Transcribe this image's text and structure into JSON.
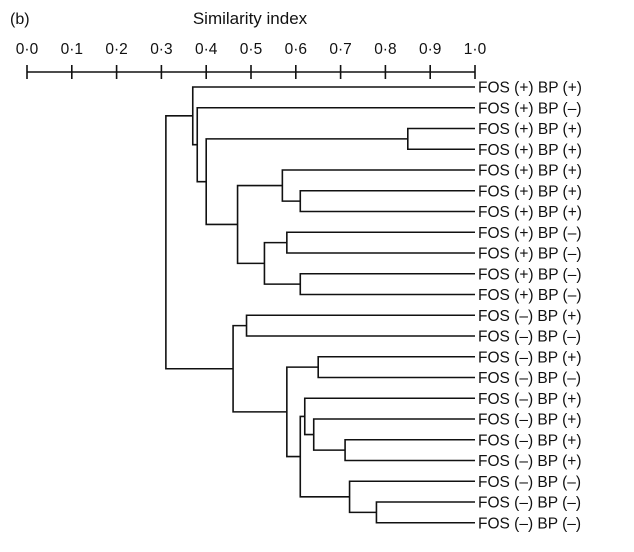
{
  "panel_label": "(b)",
  "axis_title": "Similarity index",
  "chart_data": {
    "type": "dendrogram",
    "axis": {
      "range": [
        0.0,
        1.0
      ],
      "ticks": [
        0.0,
        0.1,
        0.2,
        0.3,
        0.4,
        0.5,
        0.6,
        0.7,
        0.8,
        0.9,
        1.0
      ],
      "tick_labels": [
        "0·0",
        "0·1",
        "0·2",
        "0·3",
        "0·4",
        "0·5",
        "0·6",
        "0·7",
        "0·8",
        "0·9",
        "1·0"
      ],
      "position": "top"
    },
    "leaves": [
      "FOS (+) BP (+)",
      "FOS (+) BP (–)",
      "FOS (+) BP (+)",
      "FOS (+) BP (+)",
      "FOS (+) BP (+)",
      "FOS (+) BP (+)",
      "FOS (+) BP (+)",
      "FOS (+) BP (–)",
      "FOS (+) BP (–)",
      "FOS (+) BP (–)",
      "FOS (+) BP (–)",
      "FOS (–) BP (+)",
      "FOS (–) BP (–)",
      "FOS (–) BP (+)",
      "FOS (–) BP (–)",
      "FOS (–) BP (+)",
      "FOS (–) BP (+)",
      "FOS (–) BP (+)",
      "FOS (–) BP (+)",
      "FOS (–) BP (–)",
      "FOS (–) BP (–)",
      "FOS (–) BP (–)"
    ],
    "merges": [
      {
        "a": "L2",
        "b": "L3",
        "similarity": 0.85
      },
      {
        "a": "L5",
        "b": "L6",
        "similarity": 0.61
      },
      {
        "a": "L4",
        "b": "N1",
        "similarity": 0.57
      },
      {
        "a": "L7",
        "b": "L8",
        "similarity": 0.58
      },
      {
        "a": "L9",
        "b": "L10",
        "similarity": 0.61
      },
      {
        "a": "N3",
        "b": "N4",
        "similarity": 0.53
      },
      {
        "a": "N2",
        "b": "N5",
        "similarity": 0.47
      },
      {
        "a": "N0",
        "b": "N6",
        "similarity": 0.4
      },
      {
        "a": "L1",
        "b": "N7",
        "similarity": 0.38
      },
      {
        "a": "L0",
        "b": "N8",
        "similarity": 0.37
      },
      {
        "a": "L11",
        "b": "L12",
        "similarity": 0.49
      },
      {
        "a": "L13",
        "b": "L14",
        "similarity": 0.65
      },
      {
        "a": "L17",
        "b": "L18",
        "similarity": 0.71
      },
      {
        "a": "L16",
        "b": "N12",
        "similarity": 0.64
      },
      {
        "a": "L15",
        "b": "N13",
        "similarity": 0.62
      },
      {
        "a": "L20",
        "b": "L21",
        "similarity": 0.78
      },
      {
        "a": "L19",
        "b": "N15",
        "similarity": 0.72
      },
      {
        "a": "N14",
        "b": "N16",
        "similarity": 0.61
      },
      {
        "a": "N11",
        "b": "N17",
        "similarity": 0.58
      },
      {
        "a": "N10",
        "b": "N18",
        "similarity": 0.46
      },
      {
        "a": "N9",
        "b": "N19",
        "similarity": 0.31
      }
    ]
  }
}
